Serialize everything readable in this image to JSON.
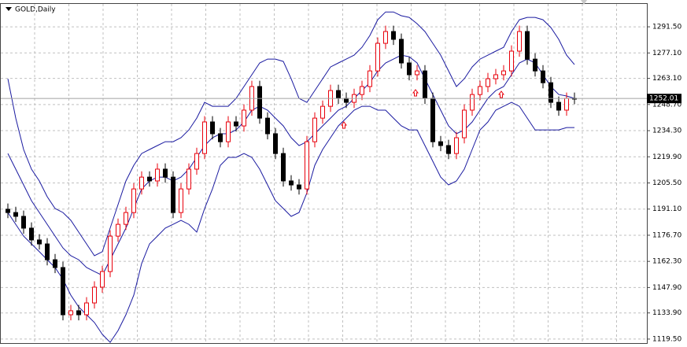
{
  "chart_data": {
    "type": "candlestick",
    "title": "GOLD,Daily",
    "open": [
      1191.0,
      1189.2,
      1187.1,
      1180.6,
      1174.1,
      1171.9,
      1163.2,
      1158.9,
      1132.9,
      1135.1,
      1132.9,
      1139.4,
      1148.1,
      1156.7,
      1176.2,
      1182.7,
      1189.2,
      1202.2,
      1208.7,
      1206.6,
      1213.1,
      1208.7,
      1189.2,
      1202.2,
      1213.1,
      1221.7,
      1239.1,
      1232.6,
      1228.2,
      1239.1,
      1236.9,
      1245.6,
      1258.6,
      1241.2,
      1232.6,
      1221.7,
      1206.6,
      1204.4,
      1202.2,
      1228.2,
      1241.2,
      1247.7,
      1256.4,
      1252.1,
      1249.9,
      1254.2,
      1258.6,
      1267.2,
      1282.4,
      1288.9,
      1284.6,
      1271.6,
      1265.1,
      1267.2,
      1252.1,
      1228.2,
      1226.1,
      1221.7,
      1230.4,
      1245.6,
      1254.2,
      1258.6,
      1262.9,
      1265.1,
      1267.2,
      1278.1,
      1288.9,
      1273.7,
      1267.2,
      1260.7,
      1249.9,
      1245.6,
      1252.1
    ],
    "high": [
      1194.2,
      1192.4,
      1190.3,
      1183.8,
      1177.3,
      1175.1,
      1166.4,
      1162.1,
      1138.3,
      1138.3,
      1142.6,
      1151.3,
      1159.9,
      1179.4,
      1185.9,
      1192.4,
      1205.4,
      1211.9,
      1211.9,
      1216.3,
      1216.3,
      1211.9,
      1205.4,
      1216.3,
      1224.9,
      1242.3,
      1242.3,
      1235.8,
      1242.3,
      1242.3,
      1248.8,
      1261.8,
      1261.8,
      1244.4,
      1235.8,
      1224.9,
      1209.8,
      1207.6,
      1231.4,
      1244.4,
      1250.9,
      1259.6,
      1259.6,
      1255.3,
      1257.4,
      1261.8,
      1270.4,
      1285.6,
      1292.1,
      1292.1,
      1287.8,
      1274.8,
      1270.4,
      1270.4,
      1255.3,
      1231.4,
      1229.3,
      1233.6,
      1248.8,
      1257.4,
      1261.8,
      1266.1,
      1268.3,
      1270.4,
      1281.3,
      1292.1,
      1292.1,
      1276.9,
      1270.4,
      1263.9,
      1253.1,
      1255.3,
      1255.3
    ],
    "low": [
      1186.1,
      1184.0,
      1177.5,
      1171.0,
      1168.8,
      1160.1,
      1155.8,
      1129.8,
      1129.8,
      1129.8,
      1129.8,
      1136.3,
      1145.0,
      1153.6,
      1173.1,
      1179.6,
      1186.1,
      1199.1,
      1203.5,
      1203.5,
      1205.6,
      1186.1,
      1186.1,
      1199.1,
      1210.0,
      1218.6,
      1229.5,
      1225.1,
      1225.1,
      1233.8,
      1233.8,
      1242.5,
      1238.1,
      1229.5,
      1218.6,
      1203.5,
      1201.3,
      1199.1,
      1199.1,
      1225.1,
      1238.1,
      1244.6,
      1249.0,
      1246.8,
      1246.8,
      1251.1,
      1255.5,
      1264.1,
      1279.3,
      1281.5,
      1268.5,
      1262.0,
      1262.0,
      1249.0,
      1225.1,
      1223.0,
      1218.6,
      1218.6,
      1227.3,
      1242.5,
      1251.1,
      1255.5,
      1259.8,
      1262.0,
      1264.1,
      1275.0,
      1270.6,
      1264.1,
      1257.6,
      1246.8,
      1242.5,
      1242.5,
      1248.9
    ],
    "close": [
      1189.2,
      1187.1,
      1180.6,
      1174.1,
      1171.9,
      1163.2,
      1158.9,
      1132.9,
      1135.1,
      1132.9,
      1139.4,
      1148.1,
      1156.7,
      1176.2,
      1182.7,
      1189.2,
      1202.2,
      1208.7,
      1206.6,
      1213.1,
      1208.7,
      1189.2,
      1202.2,
      1213.1,
      1221.7,
      1239.1,
      1232.6,
      1228.2,
      1239.1,
      1236.9,
      1245.6,
      1258.6,
      1241.2,
      1232.6,
      1221.7,
      1206.6,
      1204.4,
      1202.2,
      1228.2,
      1241.2,
      1247.7,
      1256.4,
      1252.1,
      1249.9,
      1254.2,
      1258.6,
      1267.2,
      1282.4,
      1288.9,
      1284.6,
      1271.6,
      1265.1,
      1267.2,
      1252.1,
      1228.2,
      1226.1,
      1221.7,
      1230.4,
      1245.6,
      1254.2,
      1258.6,
      1262.9,
      1265.1,
      1267.2,
      1278.1,
      1288.9,
      1273.7,
      1267.2,
      1260.7,
      1249.9,
      1245.6,
      1252.1,
      1252.0
    ],
    "up_color": "#e8000b",
    "down_color": "#000000",
    "overlays": [
      {
        "color": "#1a1aa0",
        "values": [
          1262.9,
          1241.2,
          1223.9,
          1213.1,
          1206.6,
          1197.9,
          1191.4,
          1189.2,
          1184.9,
          1178.4,
          1171.9,
          1165.4,
          1167.6,
          1180.6,
          1193.6,
          1206.6,
          1215.2,
          1221.7,
          1223.9,
          1226.1,
          1228.2,
          1228.2,
          1230.4,
          1234.7,
          1241.2,
          1249.9,
          1247.7,
          1247.7,
          1247.7,
          1252.1,
          1258.6,
          1265.1,
          1271.6,
          1273.7,
          1273.7,
          1272.4,
          1262.9,
          1252.1,
          1249.9,
          1256.4,
          1262.9,
          1269.4,
          1271.6,
          1273.7,
          1275.9,
          1280.2,
          1286.7,
          1295.4,
          1299.7,
          1299.7,
          1297.6,
          1296.7,
          1293.2,
          1288.9,
          1282.4,
          1275.9,
          1267.2,
          1258.6,
          1262.9,
          1269.4,
          1273.7,
          1275.9,
          1278.1,
          1280.2,
          1288.9,
          1295.4,
          1296.7,
          1296.7,
          1295.4,
          1291.1,
          1284.6,
          1275.9,
          1270.7
        ]
      },
      {
        "color": "#1a1aa0",
        "values": [
          1221.7,
          1213.1,
          1204.4,
          1195.7,
          1189.2,
          1182.7,
          1176.2,
          1169.7,
          1165.4,
          1163.2,
          1158.9,
          1156.7,
          1154.6,
          1163.2,
          1171.9,
          1180.6,
          1191.4,
          1202.2,
          1206.6,
          1208.7,
          1208.7,
          1206.6,
          1208.7,
          1213.1,
          1219.6,
          1226.1,
          1230.4,
          1232.6,
          1232.6,
          1234.7,
          1239.1,
          1245.6,
          1247.7,
          1245.6,
          1241.2,
          1236.9,
          1230.4,
          1226.1,
          1228.2,
          1232.6,
          1236.9,
          1241.2,
          1245.6,
          1247.7,
          1252.1,
          1256.4,
          1260.7,
          1267.2,
          1271.6,
          1273.7,
          1275.9,
          1275.0,
          1271.6,
          1262.9,
          1254.2,
          1245.6,
          1236.9,
          1232.6,
          1234.7,
          1239.1,
          1245.6,
          1252.1,
          1256.4,
          1258.6,
          1265.1,
          1271.6,
          1273.7,
          1271.6,
          1265.1,
          1258.6,
          1254.2,
          1253.4,
          1252.1
        ]
      },
      {
        "color": "#1a1aa0",
        "values": [
          1189.2,
          1182.7,
          1176.2,
          1171.9,
          1167.6,
          1163.2,
          1158.9,
          1152.4,
          1143.7,
          1137.2,
          1132.9,
          1128.6,
          1122.1,
          1117.7,
          1124.2,
          1132.9,
          1143.7,
          1161.1,
          1171.9,
          1176.2,
          1180.6,
          1182.7,
          1184.9,
          1182.7,
          1178.4,
          1191.4,
          1202.2,
          1215.2,
          1219.6,
          1219.6,
          1221.7,
          1219.6,
          1213.1,
          1204.4,
          1195.7,
          1191.4,
          1187.1,
          1189.2,
          1200.1,
          1215.2,
          1223.9,
          1230.4,
          1236.9,
          1241.2,
          1245.6,
          1247.7,
          1247.7,
          1245.6,
          1245.6,
          1241.2,
          1236.9,
          1234.7,
          1234.7,
          1226.1,
          1217.4,
          1208.7,
          1204.4,
          1206.6,
          1213.1,
          1223.9,
          1234.7,
          1239.1,
          1245.6,
          1247.7,
          1249.9,
          1247.7,
          1241.2,
          1234.7,
          1234.7,
          1234.7,
          1234.7,
          1236.0,
          1236.0
        ]
      }
    ],
    "ylim": [
      1117.3,
      1304.1
    ],
    "yticks": [
      {
        "value": 1291.5,
        "label": "1291.50"
      },
      {
        "value": 1277.1,
        "label": "1277.10"
      },
      {
        "value": 1263.1,
        "label": "1263.10"
      },
      {
        "value": 1248.7,
        "label": "1248.70"
      },
      {
        "value": 1234.3,
        "label": "1234.30"
      },
      {
        "value": 1219.9,
        "label": "1219.90"
      },
      {
        "value": 1205.5,
        "label": "1205.50"
      },
      {
        "value": 1191.1,
        "label": "1191.10"
      },
      {
        "value": 1176.7,
        "label": "1176.70"
      },
      {
        "value": 1162.3,
        "label": "1162.30"
      },
      {
        "value": 1147.9,
        "label": "1147.90"
      },
      {
        "value": 1133.9,
        "label": "1133.90"
      },
      {
        "value": 1119.5,
        "label": "1119.50"
      }
    ],
    "grid": true,
    "current_price": 1252.01
  }
}
